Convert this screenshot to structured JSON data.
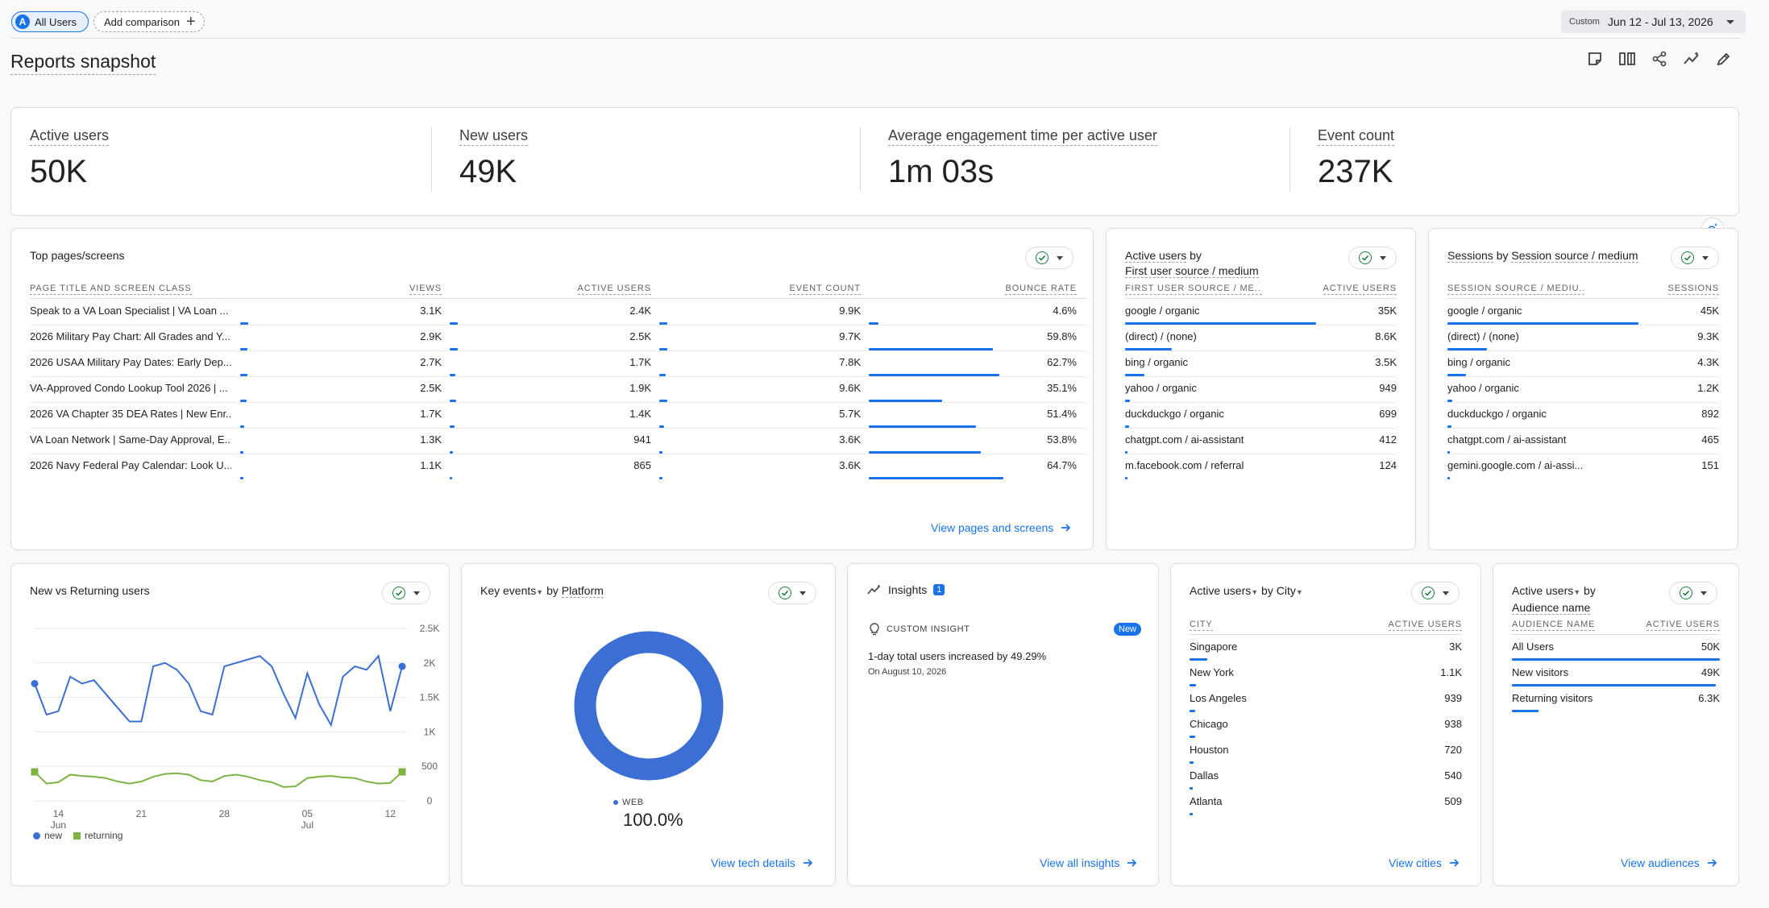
{
  "topbar": {
    "segment_avatar": "A",
    "segment_label": "All Users",
    "add_comparison": "Add comparison",
    "date_label": "Custom",
    "date_range": "Jun 12 - Jul 13, 2026"
  },
  "page_title": "Reports snapshot",
  "toolbar_icons": [
    "note-icon",
    "compare-icon",
    "share-icon",
    "insights-icon",
    "edit-icon"
  ],
  "kpis": [
    {
      "label": "Active users",
      "value": "50K"
    },
    {
      "label": "New users",
      "value": "49K"
    },
    {
      "label": "Average engagement time per active user",
      "value": "1m 03s"
    },
    {
      "label": "Event count",
      "value": "237K"
    }
  ],
  "top_pages": {
    "title": "Top pages/screens",
    "headers": [
      "PAGE TITLE AND SCREEN CLASS",
      "VIEWS",
      "ACTIVE USERS",
      "EVENT COUNT",
      "BOUNCE RATE"
    ],
    "rows": [
      {
        "title": "Speak to a VA Loan Specialist | VA Loan ...",
        "views": "3.1K",
        "active": "2.4K",
        "events": "9.9K",
        "bounce": "4.6%",
        "v": 3.1,
        "a": 2.4,
        "e": 9.9,
        "b": 4.6
      },
      {
        "title": "2026 Military Pay Chart: All Grades and Y...",
        "views": "2.9K",
        "active": "2.5K",
        "events": "9.7K",
        "bounce": "59.8%",
        "v": 2.9,
        "a": 2.5,
        "e": 9.7,
        "b": 59.8
      },
      {
        "title": "2026 USAA Military Pay Dates: Early Dep...",
        "views": "2.7K",
        "active": "1.7K",
        "events": "7.8K",
        "bounce": "62.7%",
        "v": 2.7,
        "a": 1.7,
        "e": 7.8,
        "b": 62.7
      },
      {
        "title": "VA-Approved Condo Lookup Tool 2026 | ...",
        "views": "2.5K",
        "active": "1.9K",
        "events": "9.6K",
        "bounce": "35.1%",
        "v": 2.5,
        "a": 1.9,
        "e": 9.6,
        "b": 35.1
      },
      {
        "title": "2026 VA Chapter 35 DEA Rates | New Enr...",
        "views": "1.7K",
        "active": "1.4K",
        "events": "5.7K",
        "bounce": "51.4%",
        "v": 1.7,
        "a": 1.4,
        "e": 5.7,
        "b": 51.4
      },
      {
        "title": "VA Loan Network | Same-Day Approval, E...",
        "views": "1.3K",
        "active": "941",
        "events": "3.6K",
        "bounce": "53.8%",
        "v": 1.3,
        "a": 0.941,
        "e": 3.6,
        "b": 53.8
      },
      {
        "title": "2026 Navy Federal Pay Calendar: Look U...",
        "views": "1.1K",
        "active": "865",
        "events": "3.6K",
        "bounce": "64.7%",
        "v": 1.1,
        "a": 0.865,
        "e": 3.6,
        "b": 64.7
      }
    ],
    "link": "View pages and screens"
  },
  "first_user_source": {
    "title_a": "Active users",
    "title_by": " by",
    "title_b": "First user source / medium",
    "headers": [
      "FIRST USER SOURCE / ME...",
      "ACTIVE USERS"
    ],
    "rows": [
      {
        "label": "google / organic",
        "value": "35K",
        "n": 35000
      },
      {
        "label": "(direct) / (none)",
        "value": "8.6K",
        "n": 8600
      },
      {
        "label": "bing / organic",
        "value": "3.5K",
        "n": 3500
      },
      {
        "label": "yahoo / organic",
        "value": "949",
        "n": 949
      },
      {
        "label": "duckduckgo / organic",
        "value": "699",
        "n": 699
      },
      {
        "label": "chatgpt.com / ai-assistant",
        "value": "412",
        "n": 412
      },
      {
        "label": "m.facebook.com / referral",
        "value": "124",
        "n": 124
      }
    ]
  },
  "session_source": {
    "title_a": "Sessions",
    "title_by": " by ",
    "title_b": "Session source / medium",
    "headers": [
      "SESSION SOURCE / MEDIU...",
      "SESSIONS"
    ],
    "rows": [
      {
        "label": "google / organic",
        "value": "45K",
        "n": 45000
      },
      {
        "label": "(direct) / (none)",
        "value": "9.3K",
        "n": 9300
      },
      {
        "label": "bing / organic",
        "value": "4.3K",
        "n": 4300
      },
      {
        "label": "yahoo / organic",
        "value": "1.2K",
        "n": 1200
      },
      {
        "label": "duckduckgo / organic",
        "value": "892",
        "n": 892
      },
      {
        "label": "chatgpt.com / ai-assistant",
        "value": "465",
        "n": 465
      },
      {
        "label": "gemini.google.com / ai-assi...",
        "value": "151",
        "n": 151
      }
    ]
  },
  "new_vs_returning": {
    "title": "New vs Returning users",
    "legend": [
      "new",
      "returning"
    ],
    "x_ticks": [
      {
        "day": "14",
        "month": "Jun"
      },
      {
        "day": "21",
        "month": ""
      },
      {
        "day": "28",
        "month": ""
      },
      {
        "day": "05",
        "month": "Jul"
      },
      {
        "day": "12",
        "month": ""
      }
    ],
    "y_ticks": [
      "2.5K",
      "2K",
      "1.5K",
      "1K",
      "500",
      "0"
    ]
  },
  "chart_data": {
    "type": "line",
    "x": [
      "Jun 12",
      "Jun 13",
      "Jun 14",
      "Jun 15",
      "Jun 16",
      "Jun 17",
      "Jun 18",
      "Jun 19",
      "Jun 20",
      "Jun 21",
      "Jun 22",
      "Jun 23",
      "Jun 24",
      "Jun 25",
      "Jun 26",
      "Jun 27",
      "Jun 28",
      "Jun 29",
      "Jun 30",
      "Jul 1",
      "Jul 2",
      "Jul 3",
      "Jul 4",
      "Jul 5",
      "Jul 6",
      "Jul 7",
      "Jul 8",
      "Jul 9",
      "Jul 10",
      "Jul 11",
      "Jul 12",
      "Jul 13"
    ],
    "series": [
      {
        "name": "new",
        "color": "#3b6fd4",
        "values": [
          1700,
          1250,
          1300,
          1800,
          1700,
          1750,
          1550,
          1350,
          1150,
          1150,
          1950,
          2000,
          1900,
          1700,
          1300,
          1250,
          1950,
          2000,
          2050,
          2100,
          1950,
          1550,
          1200,
          1850,
          1400,
          1100,
          1800,
          1950,
          1900,
          2100,
          1300,
          1950
        ]
      },
      {
        "name": "returning",
        "color": "#7cb342",
        "values": [
          420,
          250,
          270,
          380,
          360,
          350,
          330,
          280,
          250,
          280,
          350,
          390,
          400,
          380,
          300,
          280,
          360,
          380,
          350,
          300,
          270,
          200,
          210,
          330,
          350,
          360,
          340,
          330,
          280,
          250,
          260,
          420
        ]
      }
    ],
    "ylim": [
      0,
      2500
    ],
    "ylabel": "",
    "xlabel": ""
  },
  "key_events": {
    "title_a": "Key events",
    "title_by": " by ",
    "title_b": "Platform",
    "legend": "WEB",
    "percent": "100.0%",
    "color": "#3b6fd4",
    "link": "View tech details"
  },
  "insights": {
    "title": "Insights",
    "badge": "1",
    "kind": "CUSTOM INSIGHT",
    "new_badge": "New",
    "headline": "1-day total users increased by 49.29%",
    "date": "On August 10, 2026",
    "link": "View all insights"
  },
  "cities": {
    "title_a": "Active users",
    "title_by": " by ",
    "title_b": "City",
    "headers": [
      "CITY",
      "ACTIVE USERS"
    ],
    "rows": [
      {
        "label": "Singapore",
        "value": "3K",
        "n": 3000
      },
      {
        "label": "New York",
        "value": "1.1K",
        "n": 1100
      },
      {
        "label": "Los Angeles",
        "value": "939",
        "n": 939
      },
      {
        "label": "Chicago",
        "value": "938",
        "n": 938
      },
      {
        "label": "Houston",
        "value": "720",
        "n": 720
      },
      {
        "label": "Dallas",
        "value": "540",
        "n": 540
      },
      {
        "label": "Atlanta",
        "value": "509",
        "n": 509
      }
    ],
    "link": "View cities"
  },
  "audiences": {
    "title_a": "Active users",
    "title_by": " by",
    "title_b": "Audience name",
    "headers": [
      "AUDIENCE NAME",
      "ACTIVE USERS"
    ],
    "rows": [
      {
        "label": "All Users",
        "value": "50K",
        "n": 50000
      },
      {
        "label": "New visitors",
        "value": "49K",
        "n": 49000
      },
      {
        "label": "Returning visitors",
        "value": "6.3K",
        "n": 6300
      }
    ],
    "link": "View audiences"
  }
}
